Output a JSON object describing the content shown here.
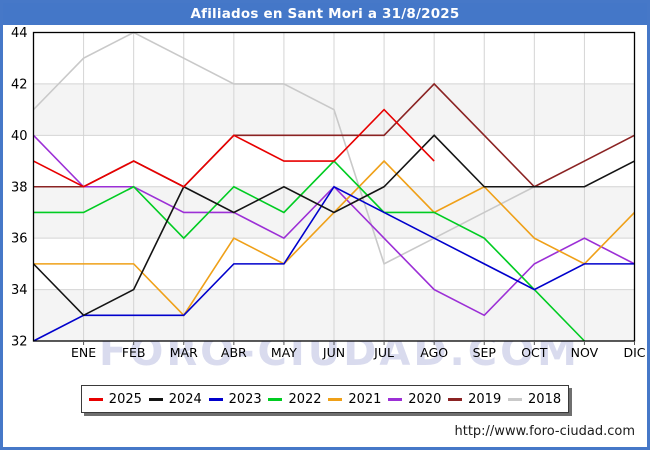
{
  "title": "Afiliados en Sant Mori a 31/8/2025",
  "watermark": "FORO-CIUDAD.COM",
  "footer_url": "http://www.foro-ciudad.com",
  "colors": {
    "title_bar": "#4477c8",
    "frame_border": "#4678c8",
    "band_fill": "#f4f4f4",
    "gridline": "#d4d4d4",
    "plot_border": "#000000"
  },
  "chart_data": {
    "type": "line",
    "title": "Afiliados en Sant Mori a 31/8/2025",
    "xlabel": "",
    "ylabel": "",
    "ylim": [
      32,
      44
    ],
    "y_ticks": [
      44,
      42,
      40,
      38,
      36,
      34,
      32
    ],
    "x_labels": [
      "ENE",
      "FEB",
      "MAR",
      "ABR",
      "MAY",
      "JUN",
      "JUL",
      "AGO",
      "SEP",
      "OCT",
      "NOV",
      "DIC"
    ],
    "x_index_of_first_label": 1,
    "grid": true,
    "legend_position": "bottom",
    "series": [
      {
        "name": "2025",
        "color": "#e80000",
        "values": [
          39,
          38,
          39,
          38,
          40,
          39,
          39,
          41,
          39
        ]
      },
      {
        "name": "2024",
        "color": "#141414",
        "values": [
          35,
          33,
          34,
          38,
          37,
          38,
          37,
          38,
          40,
          38,
          38,
          38,
          39
        ]
      },
      {
        "name": "2023",
        "color": "#0000cc",
        "values": [
          32,
          33,
          33,
          33,
          35,
          35,
          38,
          37,
          36,
          35,
          34,
          35,
          35
        ]
      },
      {
        "name": "2022",
        "color": "#00cc22",
        "values": [
          37,
          37,
          38,
          36,
          38,
          37,
          39,
          37,
          37,
          36,
          34,
          32
        ]
      },
      {
        "name": "2021",
        "color": "#efa018",
        "values": [
          35,
          35,
          35,
          33,
          36,
          35,
          37,
          39,
          37,
          38,
          36,
          35,
          37
        ]
      },
      {
        "name": "2020",
        "color": "#9c2fd6",
        "values": [
          40,
          38,
          38,
          37,
          37,
          36,
          38,
          36,
          34,
          33,
          35,
          36,
          35
        ]
      },
      {
        "name": "2019",
        "color": "#8b2323",
        "values": [
          38,
          38,
          39,
          38,
          40,
          40,
          40,
          40,
          42,
          40,
          38,
          39,
          40
        ]
      },
      {
        "name": "2018",
        "color": "#c9c9c9",
        "values": [
          41,
          43,
          44,
          43,
          42,
          42,
          41,
          35,
          36,
          37,
          38
        ]
      }
    ]
  }
}
